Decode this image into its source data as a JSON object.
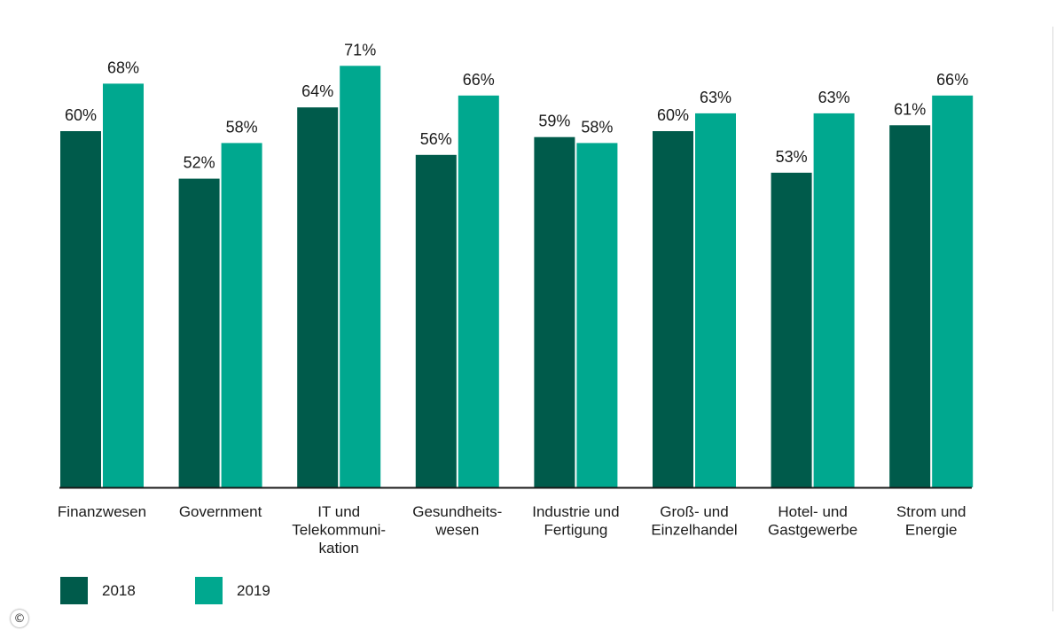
{
  "chart_data": {
    "type": "bar",
    "title": "",
    "xlabel": "",
    "ylabel": "",
    "ylim": [
      0,
      100
    ],
    "grid": false,
    "legend_position": "bottom-left",
    "categories": [
      [
        "Finanzwesen"
      ],
      [
        "Government"
      ],
      [
        "IT und",
        "Telekommuni-",
        "kation"
      ],
      [
        "Gesundheits-",
        "wesen"
      ],
      [
        "Industrie und",
        "Fertigung"
      ],
      [
        "Groß- und",
        "Einzelhandel"
      ],
      [
        "Hotel- und",
        "Gastgewerbe"
      ],
      [
        "Strom und",
        "Energie"
      ]
    ],
    "series": [
      {
        "name": "2018",
        "color": "#005b4b",
        "values": [
          60,
          52,
          64,
          56,
          59,
          60,
          53,
          61
        ],
        "labels": [
          "60%",
          "52%",
          "64%",
          "56%",
          "59%",
          "60%",
          "53%",
          "61%"
        ]
      },
      {
        "name": "2019",
        "color": "#00a88f",
        "values": [
          68,
          58,
          71,
          66,
          58,
          63,
          63,
          66
        ],
        "labels": [
          "68%",
          "58%",
          "71%",
          "66%",
          "58%",
          "63%",
          "63%",
          "66%"
        ]
      }
    ]
  },
  "footer": {
    "copyright_symbol": "©"
  }
}
